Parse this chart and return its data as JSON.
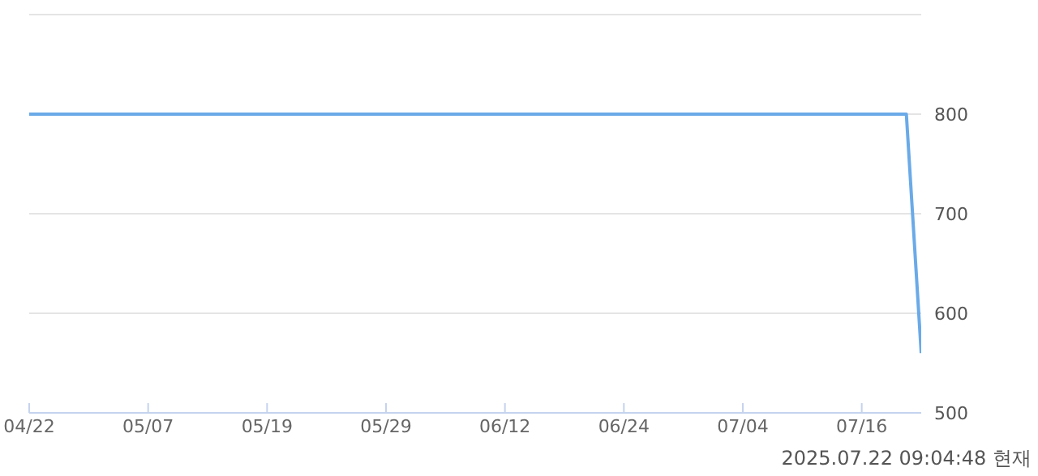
{
  "chart_data": {
    "type": "line",
    "categories": [
      "04/22",
      null,
      null,
      null,
      null,
      null,
      null,
      null,
      "05/07",
      null,
      null,
      null,
      null,
      null,
      null,
      null,
      "05/19",
      null,
      null,
      null,
      null,
      null,
      null,
      null,
      "05/29",
      null,
      null,
      null,
      null,
      null,
      null,
      null,
      "06/12",
      null,
      null,
      null,
      null,
      null,
      null,
      null,
      "06/24",
      null,
      null,
      null,
      null,
      null,
      null,
      null,
      "07/04",
      null,
      null,
      null,
      null,
      null,
      null,
      null,
      "07/16",
      null,
      null,
      null,
      null
    ],
    "series": [
      {
        "color": "#6aaae8",
        "values": [
          800,
          800,
          800,
          800,
          800,
          800,
          800,
          800,
          800,
          800,
          800,
          800,
          800,
          800,
          800,
          800,
          800,
          800,
          800,
          800,
          800,
          800,
          800,
          800,
          800,
          800,
          800,
          800,
          800,
          800,
          800,
          800,
          800,
          800,
          800,
          800,
          800,
          800,
          800,
          800,
          800,
          800,
          800,
          800,
          800,
          800,
          800,
          800,
          800,
          800,
          800,
          800,
          800,
          800,
          800,
          800,
          800,
          800,
          800,
          800,
          560
        ]
      }
    ],
    "ylim": [
      500,
      900
    ],
    "yticks": [
      500,
      600,
      700,
      800,
      {
        "value": 900,
        "label": null
      }
    ],
    "grid": "y",
    "marker": "none",
    "annotations": [
      "2025.07.22 09:04:48 현재"
    ]
  }
}
